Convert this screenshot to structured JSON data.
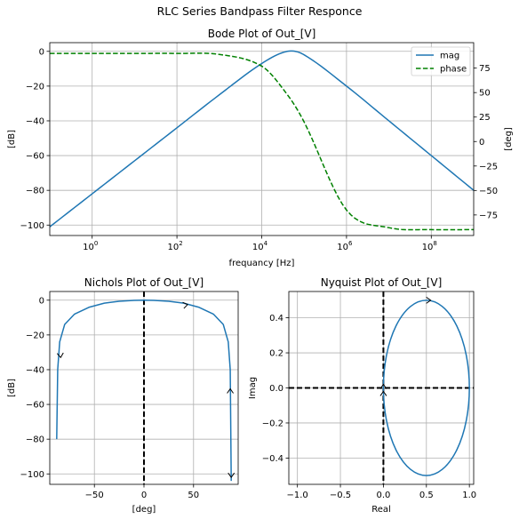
{
  "figure_title": "RLC Series Bandpass Filter Responce",
  "colors": {
    "mag": "#1f77b4",
    "phase": "#008000",
    "dashed_axis": "#000000"
  },
  "chart_data": [
    {
      "type": "line",
      "title": "Bode Plot of Out_[V]",
      "xlabel": "frequancy [Hz]",
      "ylabel": "[dB]",
      "ylabel_right": "[deg]",
      "xscale": "log",
      "xlim": [
        0.1,
        1000000000
      ],
      "ylim": [
        -106,
        5
      ],
      "ylim_right": [
        -96,
        101
      ],
      "xticks": [
        1,
        100,
        10000,
        1000000,
        100000000
      ],
      "xtick_labels": [
        "10^0",
        "10^2",
        "10^4",
        "10^6",
        "10^8"
      ],
      "yticks": [
        0,
        -20,
        -40,
        -60,
        -80,
        -100
      ],
      "yticks_right": [
        75,
        50,
        25,
        0,
        -25,
        -50,
        -75
      ],
      "grid": true,
      "legend": {
        "placement": "top-right",
        "entries": [
          "mag",
          "phase"
        ]
      },
      "series": [
        {
          "name": "mag",
          "axis": "left",
          "style": "solid",
          "x": [
            0.1,
            1,
            10,
            100,
            1000,
            10000,
            40000,
            100000,
            1000000,
            10000000,
            100000000,
            1000000000
          ],
          "y": [
            -101,
            -82,
            -63,
            -44,
            -25,
            -7,
            0,
            -2,
            -20,
            -40,
            -60,
            -80
          ]
        },
        {
          "name": "phase",
          "axis": "right",
          "style": "dashed",
          "x": [
            0.1,
            1,
            10,
            100,
            1000,
            10000,
            40000,
            100000,
            1000000,
            10000000,
            100000000,
            1000000000
          ],
          "y": [
            90,
            90,
            90,
            90,
            89,
            77,
            48,
            20,
            -70,
            -88,
            -90,
            -90
          ]
        }
      ]
    },
    {
      "type": "line",
      "title": "Nichols Plot of Out_[V]",
      "xlabel": "[deg]",
      "ylabel": "[dB]",
      "xlim": [
        -95,
        95
      ],
      "ylim": [
        -106,
        5
      ],
      "xticks": [
        -50,
        0,
        50
      ],
      "yticks": [
        0,
        -20,
        -40,
        -60,
        -80,
        -100
      ],
      "grid": true,
      "series": [
        {
          "x": [
            -88,
            -87,
            -85,
            -80,
            -70,
            -55,
            -40,
            -25,
            -10,
            0,
            10,
            25,
            40,
            55,
            70,
            80,
            85,
            87,
            88
          ],
          "y": [
            -80,
            -40,
            -24,
            -14,
            -8,
            -4,
            -1.7,
            -0.6,
            -0.1,
            0,
            -0.1,
            -0.6,
            -1.7,
            -4,
            -8,
            -14,
            -24,
            -40,
            -104
          ]
        }
      ],
      "annotations": [
        {
          "type": "arrow",
          "at": [
            44,
            -2.5
          ]
        },
        {
          "type": "arrow",
          "at": [
            -84,
            -33
          ]
        },
        {
          "type": "arrow",
          "at": [
            87,
            -51
          ]
        },
        {
          "type": "arrow",
          "at": [
            88,
            -102
          ]
        }
      ]
    },
    {
      "type": "line",
      "title": "Nyquist Plot of Out_[V]",
      "xlabel": "Real",
      "ylabel": "Imag",
      "xlim": [
        -1.1,
        1.05
      ],
      "ylim": [
        -0.55,
        0.55
      ],
      "xticks": [
        -1.0,
        -0.5,
        0.0,
        0.5,
        1.0
      ],
      "yticks": [
        0.4,
        0.2,
        0.0,
        -0.2,
        -0.4
      ],
      "grid": true,
      "series": [
        {
          "shape": "circle",
          "center": [
            0.5,
            0.0
          ],
          "radius": 0.5
        }
      ],
      "annotations": [
        {
          "type": "arrow",
          "at": [
            0.55,
            0.5
          ]
        },
        {
          "type": "arrow",
          "at": [
            0.0,
            -0.02
          ]
        },
        {
          "type": "arrow",
          "at": [
            0.0,
            0.02
          ]
        }
      ]
    }
  ]
}
